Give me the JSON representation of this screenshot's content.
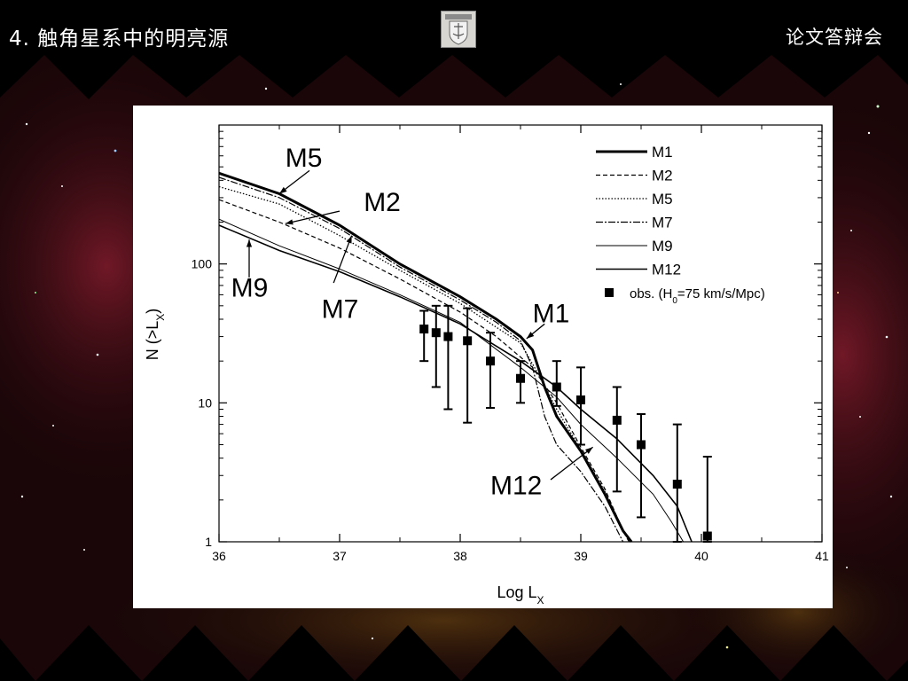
{
  "slide": {
    "title": "4. 触角星系中的明亮源",
    "tag": "论文答辩会",
    "emblem_icon": "university-crest-icon"
  },
  "chart_data": {
    "type": "line",
    "xlabel": "Log L",
    "xlabel_sub": "X",
    "ylabel": "N (>L",
    "ylabel_sub": "X",
    "ylabel_close": ")",
    "xlim": [
      36,
      41
    ],
    "ylim": [
      1,
      1000
    ],
    "yscale": "log",
    "x_ticks": [
      "36",
      "37",
      "38",
      "39",
      "40",
      "41"
    ],
    "y_ticks": [
      {
        "value": 1,
        "label": "1"
      },
      {
        "value": 10,
        "label": "10"
      },
      {
        "value": 100,
        "label": "100"
      }
    ],
    "legend_position": "top-right",
    "series": [
      {
        "name": "M1",
        "style": "thick-solid",
        "points": [
          [
            36,
            450
          ],
          [
            36.5,
            320
          ],
          [
            37,
            190
          ],
          [
            37.5,
            100
          ],
          [
            38,
            58
          ],
          [
            38.3,
            40
          ],
          [
            38.5,
            30
          ],
          [
            38.6,
            24
          ],
          [
            38.7,
            13
          ],
          [
            38.8,
            8
          ],
          [
            39,
            4.5
          ],
          [
            39.2,
            2.2
          ],
          [
            39.35,
            1.2
          ],
          [
            39.42,
            1
          ]
        ]
      },
      {
        "name": "M2",
        "style": "dashed",
        "points": [
          [
            36,
            290
          ],
          [
            36.5,
            200
          ],
          [
            37,
            130
          ],
          [
            37.5,
            78
          ],
          [
            38,
            45
          ],
          [
            38.3,
            30
          ],
          [
            38.6,
            18
          ],
          [
            38.8,
            10
          ],
          [
            39,
            4.8
          ],
          [
            39.2,
            2.4
          ],
          [
            39.35,
            1.2
          ],
          [
            39.4,
            1
          ]
        ]
      },
      {
        "name": "M5",
        "style": "dotted",
        "points": [
          [
            36,
            360
          ],
          [
            36.5,
            270
          ],
          [
            37,
            160
          ],
          [
            37.5,
            90
          ],
          [
            38,
            52
          ],
          [
            38.3,
            35
          ],
          [
            38.5,
            27
          ],
          [
            38.65,
            16
          ],
          [
            38.8,
            9
          ],
          [
            39,
            4.6
          ],
          [
            39.2,
            2.3
          ],
          [
            39.35,
            1.2
          ],
          [
            39.42,
            1
          ]
        ]
      },
      {
        "name": "M7",
        "style": "dash-dot",
        "points": [
          [
            36,
            420
          ],
          [
            36.5,
            300
          ],
          [
            37,
            180
          ],
          [
            37.5,
            95
          ],
          [
            38,
            55
          ],
          [
            38.3,
            38
          ],
          [
            38.5,
            28
          ],
          [
            38.6,
            18
          ],
          [
            38.7,
            8
          ],
          [
            38.8,
            5
          ],
          [
            39,
            3.2
          ],
          [
            39.2,
            1.8
          ],
          [
            39.35,
            1
          ]
        ]
      },
      {
        "name": "M9",
        "style": "thin-solid",
        "points": [
          [
            36,
            210
          ],
          [
            36.5,
            135
          ],
          [
            37,
            92
          ],
          [
            37.5,
            60
          ],
          [
            38,
            38
          ],
          [
            38.5,
            18
          ],
          [
            38.8,
            11
          ],
          [
            39,
            7
          ],
          [
            39.3,
            4
          ],
          [
            39.6,
            2.2
          ],
          [
            39.75,
            1.4
          ],
          [
            39.85,
            1
          ]
        ]
      },
      {
        "name": "M12",
        "style": "solid",
        "points": [
          [
            36,
            190
          ],
          [
            36.5,
            125
          ],
          [
            37,
            88
          ],
          [
            37.5,
            58
          ],
          [
            38,
            37
          ],
          [
            38.5,
            20
          ],
          [
            38.8,
            13
          ],
          [
            39,
            9
          ],
          [
            39.3,
            5.5
          ],
          [
            39.6,
            3
          ],
          [
            39.8,
            1.8
          ],
          [
            39.92,
            1
          ]
        ]
      }
    ],
    "observations": {
      "name": "obs. (H",
      "name_sub": "0",
      "name_rest": "=75 km/s/Mpc)",
      "points": [
        {
          "x": 37.7,
          "y": 34,
          "lo": 20,
          "hi": 46
        },
        {
          "x": 37.8,
          "y": 32,
          "lo": 13,
          "hi": 50
        },
        {
          "x": 37.9,
          "y": 30,
          "lo": 9,
          "hi": 50
        },
        {
          "x": 38.06,
          "y": 28,
          "lo": 7.2,
          "hi": 48
        },
        {
          "x": 38.25,
          "y": 20,
          "lo": 9.2,
          "hi": 32
        },
        {
          "x": 38.5,
          "y": 15,
          "lo": 10,
          "hi": 20
        },
        {
          "x": 38.8,
          "y": 13,
          "lo": 9.5,
          "hi": 20
        },
        {
          "x": 39.0,
          "y": 10.5,
          "lo": 5,
          "hi": 18
        },
        {
          "x": 39.3,
          "y": 7.5,
          "lo": 2.3,
          "hi": 13
        },
        {
          "x": 39.5,
          "y": 5,
          "lo": 1.5,
          "hi": 8.3
        },
        {
          "x": 39.8,
          "y": 2.6,
          "lo": 1,
          "hi": 7
        },
        {
          "x": 40.05,
          "y": 1.1,
          "lo": 1,
          "hi": 4.1
        }
      ]
    },
    "annotations": [
      {
        "text": "M5",
        "x": 36.55,
        "y": 500,
        "tip": [
          36.5,
          320
        ],
        "from": [
          36.75,
          470
        ]
      },
      {
        "text": "M2",
        "x": 37.2,
        "y": 240,
        "tip": [
          36.55,
          195
        ],
        "from": [
          37.0,
          240
        ]
      },
      {
        "text": "M9",
        "x": 36.1,
        "y": 58,
        "tip": [
          36.25,
          150
        ],
        "from": [
          36.25,
          80
        ]
      },
      {
        "text": "M7",
        "x": 36.85,
        "y": 41,
        "tip": [
          37.1,
          160
        ],
        "from": [
          36.95,
          73
        ]
      },
      {
        "text": "M1",
        "x": 38.6,
        "y": 38,
        "tip": [
          38.55,
          29
        ],
        "from": [
          38.7,
          37
        ]
      },
      {
        "text": "M12",
        "x": 38.25,
        "y": 2.2,
        "tip": [
          39.1,
          4.8
        ],
        "from": [
          38.75,
          2.8
        ]
      }
    ]
  }
}
